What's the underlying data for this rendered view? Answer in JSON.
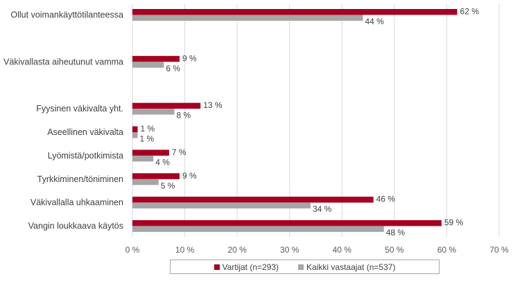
{
  "chart_data": {
    "type": "bar",
    "orientation": "horizontal",
    "title": "",
    "xlabel": "",
    "ylabel": "",
    "categories": [
      "Ollut voimankäyttötilanteessa",
      "Väkivallasta aiheutunut vamma",
      "Fyysinen väkivalta yht.",
      "Aseellinen väkivalta",
      "Lyömistä/potkimista",
      "Tyrkkiminen/töniminen",
      "Väkivallalla uhkaaminen",
      "Vangin loukkaava käytös"
    ],
    "series": [
      {
        "name": "Vartijat (n=293)",
        "color": "#a50021",
        "values": [
          62,
          9,
          13,
          1,
          7,
          9,
          46,
          59
        ],
        "labels": [
          "62 %",
          "9 %",
          "13 %",
          "1 %",
          "7 %",
          "9 %",
          "46 %",
          "59 %"
        ]
      },
      {
        "name": "Kaikki vastaajat (n=537)",
        "color": "#a6a6a6",
        "values": [
          44,
          6,
          8,
          1,
          4,
          5,
          34,
          48
        ],
        "labels": [
          "44 %",
          "6 %",
          "8 %",
          "1 %",
          "4 %",
          "5 %",
          "34 %",
          "48 %"
        ]
      }
    ],
    "xlim": [
      0,
      70
    ],
    "xticks": [
      "0 %",
      "10 %",
      "20 %",
      "30 %",
      "40 %",
      "50 %",
      "60 %",
      "70 %"
    ],
    "grid": true,
    "legend_position": "bottom"
  }
}
